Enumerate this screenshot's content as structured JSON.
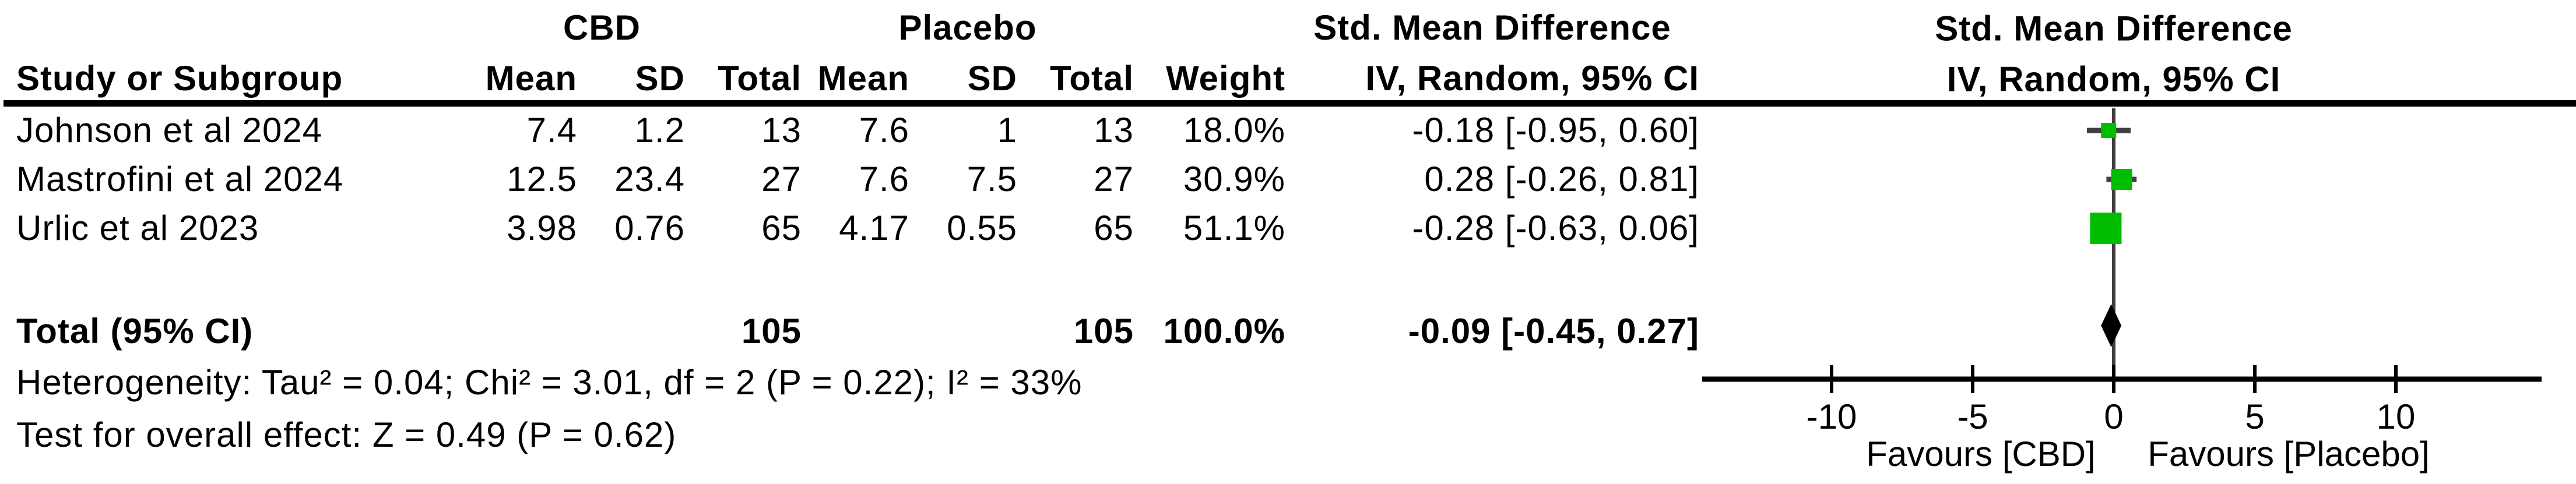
{
  "table": {
    "group_headers": {
      "cbd": "CBD",
      "placebo": "Placebo",
      "smd_left": "Std. Mean Difference",
      "smd_right": "Std. Mean Difference"
    },
    "col_headers": {
      "study": "Study or Subgroup",
      "cbd": {
        "mean": "Mean",
        "sd": "SD",
        "total": "Total"
      },
      "placebo": {
        "mean": "Mean",
        "sd": "SD",
        "total": "Total"
      },
      "weight": "Weight",
      "ci_left": "IV, Random, 95% CI",
      "ci_right": "IV, Random, 95% CI"
    },
    "rows": [
      {
        "study": "Johnson et al 2024",
        "cbd_mean": "7.4",
        "cbd_sd": "1.2",
        "cbd_total": "13",
        "pl_mean": "7.6",
        "pl_sd": "1",
        "pl_total": "13",
        "weight": "18.0%",
        "ci": "-0.18 [-0.95, 0.60]"
      },
      {
        "study": "Mastrofini et al 2024",
        "cbd_mean": "12.5",
        "cbd_sd": "23.4",
        "cbd_total": "27",
        "pl_mean": "7.6",
        "pl_sd": "7.5",
        "pl_total": "27",
        "weight": "30.9%",
        "ci": "0.28 [-0.26, 0.81]"
      },
      {
        "study": "Urlic et al 2023",
        "cbd_mean": "3.98",
        "cbd_sd": "0.76",
        "cbd_total": "65",
        "pl_mean": "4.17",
        "pl_sd": "0.55",
        "pl_total": "65",
        "weight": "51.1%",
        "ci": "-0.28 [-0.63, 0.06]"
      }
    ],
    "total_row": {
      "label": "Total (95% CI)",
      "cbd_total": "105",
      "pl_total": "105",
      "weight": "100.0%",
      "ci": "-0.09 [-0.45, 0.27]"
    },
    "footnotes": {
      "heterogeneity": "Heterogeneity: Tau² = 0.04; Chi² = 3.01, df = 2 (P = 0.22); I² = 33%",
      "overall_effect": "Test for overall effect: Z = 0.49 (P = 0.62)"
    }
  },
  "chart_data": {
    "type": "forest",
    "title": "Std. Mean Difference, IV, Random, 95% CI",
    "effect_measure": "Std. Mean Difference",
    "model": "IV, Random, 95% CI",
    "x_ticks": [
      -10,
      -5,
      0,
      5,
      10
    ],
    "xlim": [
      -14.6,
      15.2
    ],
    "axis_labels": [
      "Favours [CBD]",
      "Favours [Placebo]"
    ],
    "studies": [
      {
        "name": "Johnson et al 2024",
        "smd": -0.18,
        "ci_low": -0.95,
        "ci_high": 0.6,
        "weight_pct": 18.0,
        "marker_px": 26
      },
      {
        "name": "Mastrofini et al 2024",
        "smd": 0.28,
        "ci_low": -0.26,
        "ci_high": 0.81,
        "weight_pct": 30.9,
        "marker_px": 36
      },
      {
        "name": "Urlic et al 2023",
        "smd": -0.28,
        "ci_low": -0.63,
        "ci_high": 0.06,
        "weight_pct": 51.1,
        "marker_px": 54
      }
    ],
    "total": {
      "label": "Total (95% CI)",
      "smd": -0.09,
      "ci_low": -0.45,
      "ci_high": 0.27
    },
    "heterogeneity": {
      "tau2": 0.04,
      "chi2": 3.01,
      "df": 2,
      "p": 0.22,
      "i2_pct": 33
    },
    "overall_effect": {
      "z": 0.49,
      "p": 0.62
    },
    "marker_color": "#00bd00",
    "whisker_color": "#3f3f3f",
    "diamond_color": "#000000",
    "axis_color": "#000000",
    "grid": false,
    "legend_position": "none"
  }
}
